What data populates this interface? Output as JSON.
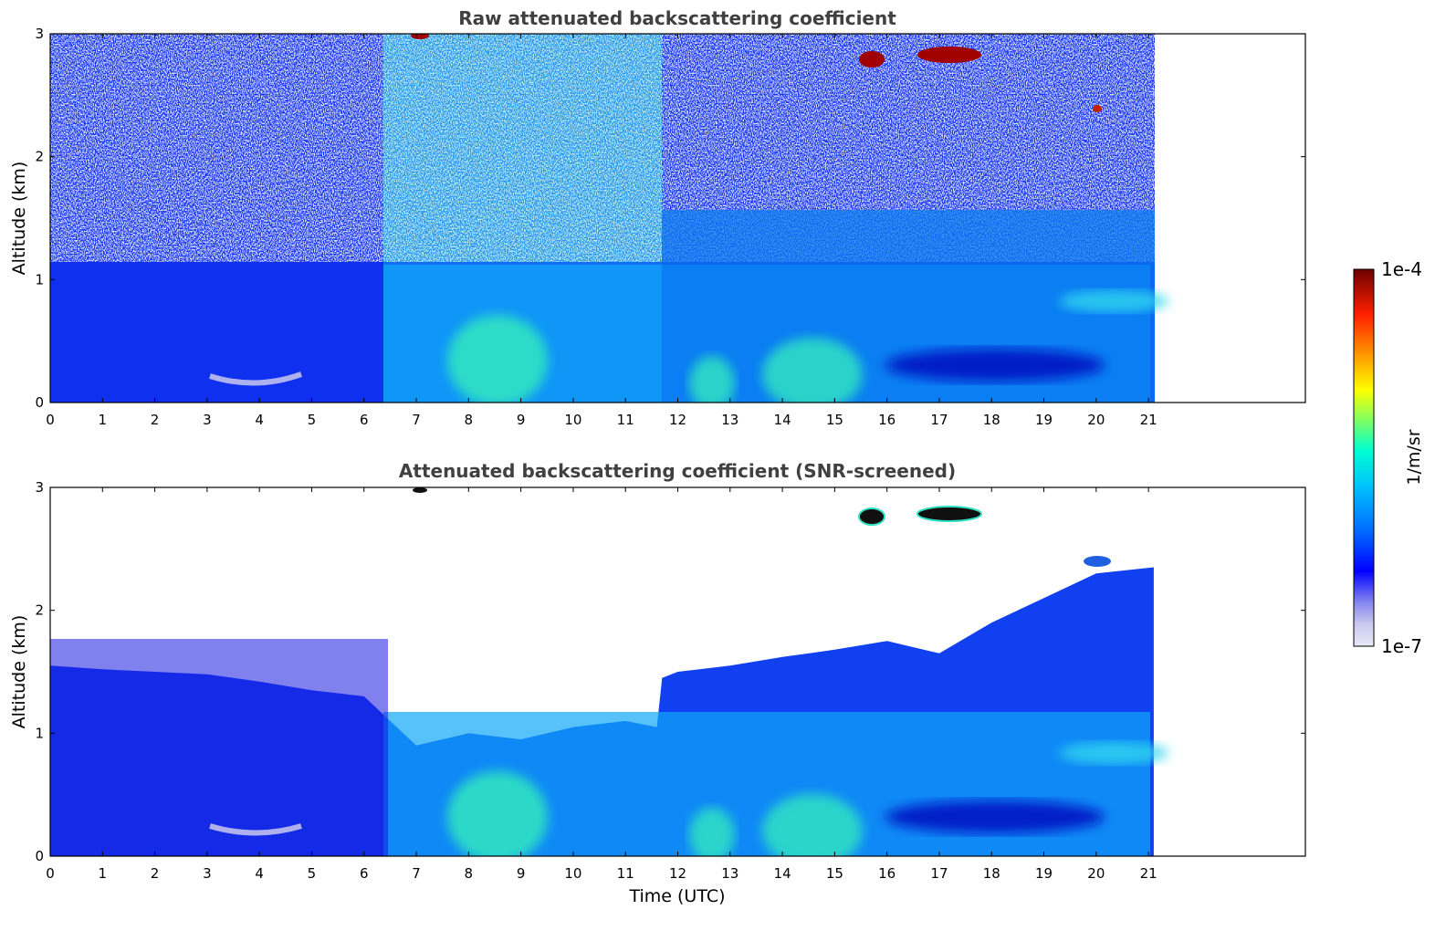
{
  "chart_data": [
    {
      "type": "heatmap",
      "title": "Raw attenuated backscattering coefficient",
      "xlabel": "",
      "ylabel": "Altitude (km)",
      "xlim": [
        0,
        24
      ],
      "ylim": [
        0,
        3
      ],
      "data_x_extent": [
        0,
        21.1
      ],
      "x_ticks": [
        "0",
        "1",
        "2",
        "3",
        "4",
        "5",
        "6",
        "7",
        "8",
        "9",
        "10",
        "11",
        "12",
        "13",
        "14",
        "15",
        "16",
        "17",
        "18",
        "19",
        "20",
        "21"
      ],
      "y_ticks": [
        "0",
        "1",
        "2",
        "3"
      ],
      "features": [
        {
          "t_start": 15.5,
          "t_end": 15.9,
          "alt": 2.8,
          "level": "1e-4",
          "desc": "cloud"
        },
        {
          "t_start": 16.6,
          "t_end": 17.8,
          "alt": 2.83,
          "level": "1e-4",
          "desc": "cloud"
        },
        {
          "t_start": 20.0,
          "t_end": 20.3,
          "alt": 2.4,
          "level": "1e-4",
          "desc": "cloud"
        },
        {
          "t_start": 6.9,
          "t_end": 7.2,
          "alt": 2.98,
          "level": "1e-4",
          "desc": "cloud"
        }
      ]
    },
    {
      "type": "heatmap",
      "title": "Attenuated backscattering coefficient (SNR-screened)",
      "xlabel": "Time (UTC)",
      "ylabel": "Altitude (km)",
      "xlim": [
        0,
        24
      ],
      "ylim": [
        0,
        3
      ],
      "data_x_extent": [
        0,
        21.1
      ],
      "x_ticks": [
        "0",
        "1",
        "2",
        "3",
        "4",
        "5",
        "6",
        "7",
        "8",
        "9",
        "10",
        "11",
        "12",
        "13",
        "14",
        "15",
        "16",
        "17",
        "18",
        "19",
        "20",
        "21"
      ],
      "y_ticks": [
        "0",
        "1",
        "2",
        "3"
      ],
      "signal_top_km": [
        [
          0,
          1.55
        ],
        [
          1,
          1.52
        ],
        [
          2,
          1.5
        ],
        [
          3,
          1.48
        ],
        [
          4,
          1.42
        ],
        [
          5,
          1.35
        ],
        [
          6,
          1.3
        ],
        [
          6.5,
          1.1
        ],
        [
          7,
          0.9
        ],
        [
          8,
          1.0
        ],
        [
          9,
          0.95
        ],
        [
          10,
          1.05
        ],
        [
          11,
          1.1
        ],
        [
          11.6,
          1.05
        ],
        [
          11.7,
          1.45
        ],
        [
          12,
          1.5
        ],
        [
          13,
          1.55
        ],
        [
          14,
          1.62
        ],
        [
          15,
          1.68
        ],
        [
          16,
          1.75
        ],
        [
          17,
          1.65
        ],
        [
          18,
          1.9
        ],
        [
          19,
          2.1
        ],
        [
          20,
          2.3
        ],
        [
          21.1,
          2.35
        ]
      ]
    }
  ],
  "colorbar": {
    "label": "1/m/sr",
    "max_label": "1e-4",
    "min_label": "1e-7",
    "colormap": [
      "#e8e8f8",
      "#c8c8f0",
      "#8080f0",
      "#0000ff",
      "#0066ff",
      "#00c0ff",
      "#00ffd0",
      "#80ff60",
      "#ffff00",
      "#ff9000",
      "#ff2000",
      "#a00000",
      "#6e0000"
    ]
  }
}
